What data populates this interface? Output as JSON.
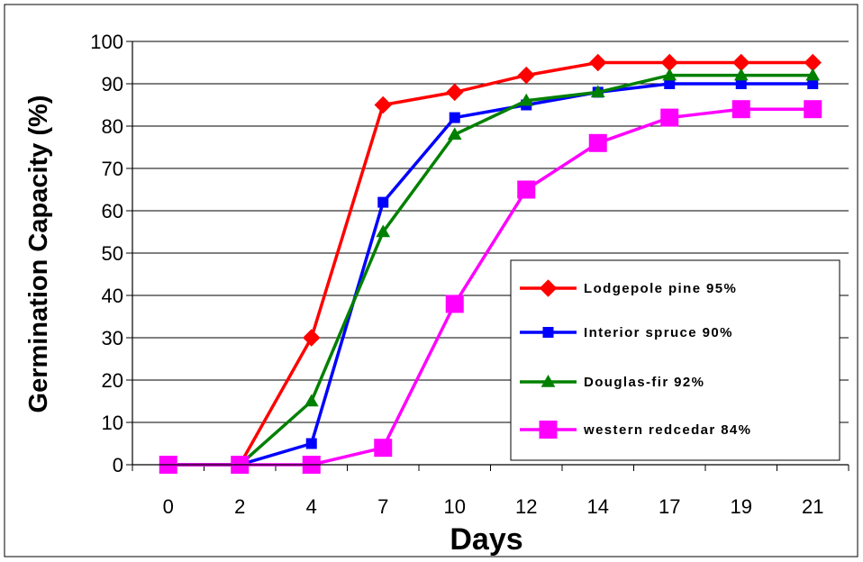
{
  "chart_data": {
    "type": "line",
    "title": "",
    "xlabel": "Days",
    "ylabel": "Germination Capacity (%)",
    "categories": [
      "0",
      "2",
      "4",
      "7",
      "10",
      "12",
      "14",
      "17",
      "19",
      "21"
    ],
    "ylim": [
      0,
      100
    ],
    "yticks": [
      0,
      10,
      20,
      30,
      40,
      50,
      60,
      70,
      80,
      90,
      100
    ],
    "grid": true,
    "legend_position": "right",
    "series": [
      {
        "name": "Lodgepole pine 95%",
        "color": "#ff0000",
        "marker": "diamond",
        "values": [
          0,
          0,
          30,
          85,
          88,
          92,
          95,
          95,
          95,
          95
        ]
      },
      {
        "name": "Interior spruce 90%",
        "color": "#0000ff",
        "marker": "square",
        "values": [
          0,
          0,
          5,
          62,
          82,
          85,
          88,
          90,
          90,
          90
        ]
      },
      {
        "name": "Douglas-fir 92%",
        "color": "#008000",
        "marker": "triangle",
        "values": [
          0,
          0,
          15,
          55,
          78,
          86,
          88,
          92,
          92,
          92
        ]
      },
      {
        "name": "western redcedar 84%",
        "color": "#ff00ff",
        "marker": "big-square",
        "values": [
          0,
          0,
          0,
          4,
          38,
          65,
          76,
          82,
          84,
          84
        ]
      }
    ]
  }
}
